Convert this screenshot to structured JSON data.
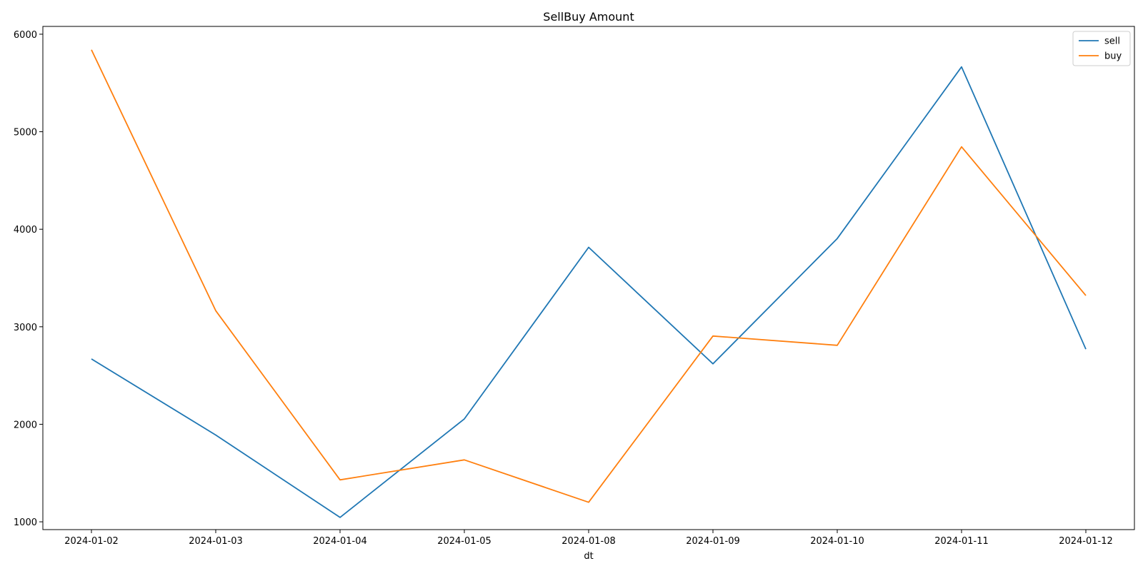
{
  "chart_data": {
    "type": "line",
    "title": "SellBuy Amount",
    "xlabel": "dt",
    "ylabel": "",
    "categories": [
      "2024-01-02",
      "2024-01-03",
      "2024-01-04",
      "2024-01-05",
      "2024-01-08",
      "2024-01-09",
      "2024-01-10",
      "2024-01-11",
      "2024-01-12"
    ],
    "ylim": [
      920,
      6080
    ],
    "yticks": [
      1000,
      2000,
      3000,
      4000,
      5000,
      6000
    ],
    "grid": false,
    "legend_position": "top-right",
    "series": [
      {
        "name": "sell",
        "color": "#1f77b4",
        "values": [
          2670,
          1890,
          1045,
          2055,
          3815,
          2620,
          3905,
          5665,
          2770
        ]
      },
      {
        "name": "buy",
        "color": "#ff7f0e",
        "values": [
          5840,
          3165,
          1430,
          1635,
          1200,
          2905,
          2810,
          4845,
          3320
        ]
      }
    ]
  }
}
